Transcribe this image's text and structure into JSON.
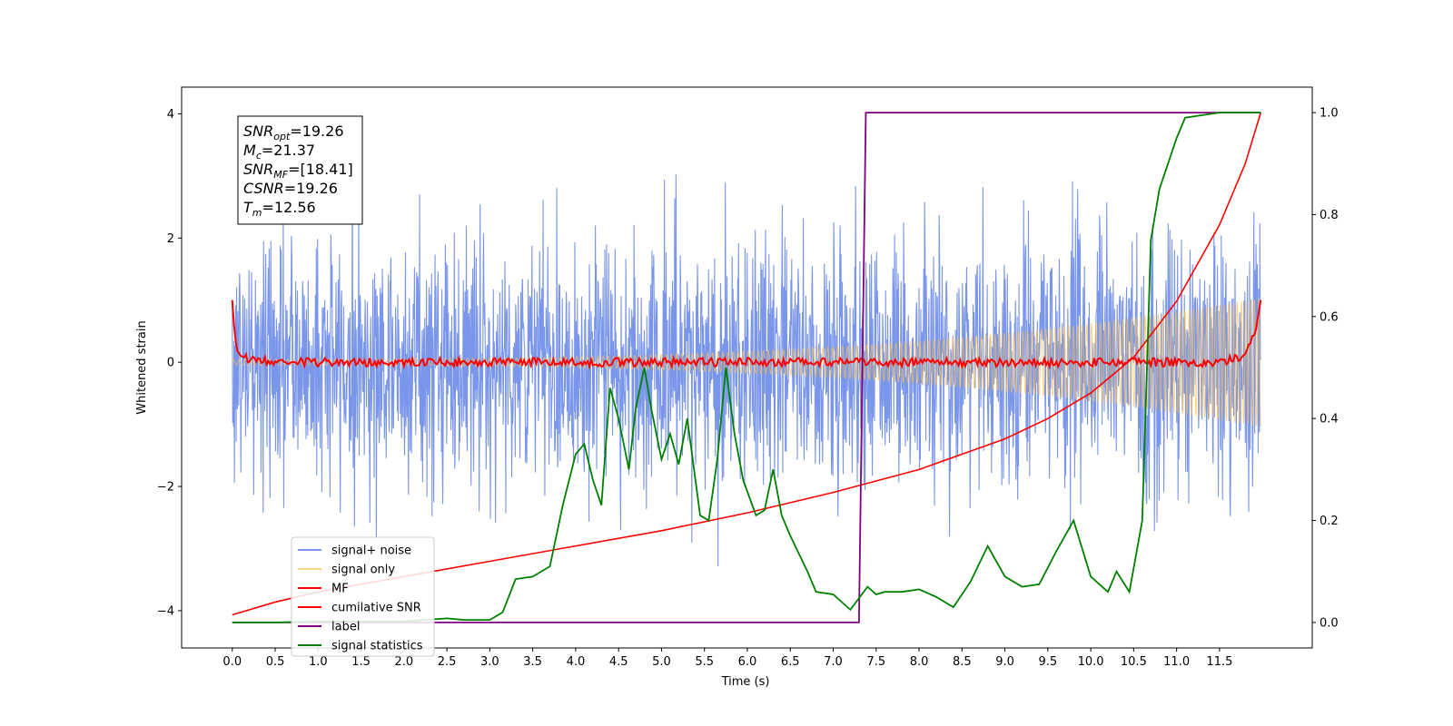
{
  "chart_data": {
    "type": "line",
    "xlabel": "Time (s)",
    "ylabel": "Whitened strain",
    "x_ticks": [
      "0.0",
      "0.5",
      "1.0",
      "1.5",
      "2.0",
      "2.5",
      "3.0",
      "3.5",
      "4.0",
      "4.5",
      "5.0",
      "5.5",
      "6.0",
      "6.5",
      "7.0",
      "7.5",
      "8.0",
      "8.5",
      "9.0",
      "9.5",
      "10.0",
      "10.5",
      "11.0",
      "11.5"
    ],
    "x_tick_values": [
      0.0,
      0.5,
      1.0,
      1.5,
      2.0,
      2.5,
      3.0,
      3.5,
      4.0,
      4.5,
      5.0,
      5.5,
      6.0,
      6.5,
      7.0,
      7.5,
      8.0,
      8.5,
      9.0,
      9.5,
      10.0,
      10.5,
      11.0,
      11.5
    ],
    "y_left_ticks": [
      "4",
      "2",
      "0",
      "−2",
      "−4"
    ],
    "y_left_tick_values": [
      4,
      2,
      0,
      -2,
      -4
    ],
    "y_right_ticks": [
      "1.0",
      "0.8",
      "0.6",
      "0.4",
      "0.2",
      "0.0"
    ],
    "y_right_tick_values": [
      1.0,
      0.8,
      0.6,
      0.4,
      0.2,
      0.0
    ],
    "xlim": [
      -0.59,
      12.58
    ],
    "ylim_left": [
      -4.6,
      4.43
    ],
    "ylim_right": [
      -0.05,
      1.05
    ],
    "grid": false,
    "legend_position": "lower-left",
    "annotation_box": {
      "lines": [
        {
          "main": "SNR",
          "sub": "opt",
          "rest": "=19.26"
        },
        {
          "main": "M",
          "sub": "c",
          "rest": "=21.37"
        },
        {
          "main": "SNR",
          "sub": "MF",
          "rest": "=[18.41]"
        },
        {
          "main": "CSNR",
          "sub": "",
          "rest": "=19.26"
        },
        {
          "main": "T",
          "sub": "m",
          "rest": "=12.56"
        }
      ]
    },
    "series": [
      {
        "name": "signal+ noise",
        "axis": "left",
        "color": "#4169e1",
        "kind": "noise",
        "x_range": [
          0,
          11.98
        ],
        "spread_std": 1.0,
        "extremes": [
          3.3,
          -4.1
        ]
      },
      {
        "name": "signal only",
        "axis": "left",
        "color": "#ffc04c",
        "kind": "chirp",
        "x_range": [
          0,
          11.98
        ],
        "amplitude_start": 0.05,
        "amplitude_end": 1.05
      },
      {
        "name": "MF",
        "axis": "left",
        "color": "#ff0000",
        "kind": "mf",
        "points": [
          [
            0.0,
            1.0
          ],
          [
            0.02,
            0.6
          ],
          [
            0.05,
            0.2
          ],
          [
            0.1,
            0.1
          ],
          [
            0.2,
            0.05
          ],
          [
            0.5,
            0.0
          ],
          [
            2.0,
            0.0
          ],
          [
            6.0,
            0.0
          ],
          [
            10.0,
            0.0
          ],
          [
            11.5,
            0.0
          ],
          [
            11.8,
            0.1
          ],
          [
            11.92,
            0.5
          ],
          [
            11.98,
            1.0
          ]
        ]
      },
      {
        "name": "cumilative SNR",
        "axis": "right",
        "color": "#ff0000",
        "points": [
          [
            0.0,
            0.015
          ],
          [
            0.5,
            0.04
          ],
          [
            1.0,
            0.06
          ],
          [
            2.0,
            0.09
          ],
          [
            3.0,
            0.12
          ],
          [
            4.0,
            0.15
          ],
          [
            5.0,
            0.18
          ],
          [
            6.0,
            0.215
          ],
          [
            7.0,
            0.255
          ],
          [
            8.0,
            0.3
          ],
          [
            9.0,
            0.36
          ],
          [
            9.5,
            0.4
          ],
          [
            10.0,
            0.45
          ],
          [
            10.5,
            0.52
          ],
          [
            11.0,
            0.63
          ],
          [
            11.5,
            0.78
          ],
          [
            11.8,
            0.9
          ],
          [
            11.98,
            1.0
          ]
        ]
      },
      {
        "name": "label",
        "axis": "right",
        "color": "#800080",
        "points": [
          [
            0.0,
            0.0
          ],
          [
            7.3,
            0.0
          ],
          [
            7.38,
            1.0
          ],
          [
            11.98,
            1.0
          ]
        ]
      },
      {
        "name": "signal statistics",
        "axis": "right",
        "color": "#008000",
        "points": [
          [
            0.0,
            0.0
          ],
          [
            0.5,
            0.0
          ],
          [
            1.0,
            0.002
          ],
          [
            2.0,
            0.002
          ],
          [
            2.5,
            0.008
          ],
          [
            2.7,
            0.005
          ],
          [
            3.0,
            0.005
          ],
          [
            3.15,
            0.02
          ],
          [
            3.3,
            0.085
          ],
          [
            3.5,
            0.09
          ],
          [
            3.7,
            0.11
          ],
          [
            3.85,
            0.23
          ],
          [
            4.0,
            0.33
          ],
          [
            4.1,
            0.35
          ],
          [
            4.2,
            0.28
          ],
          [
            4.3,
            0.23
          ],
          [
            4.4,
            0.46
          ],
          [
            4.5,
            0.4
          ],
          [
            4.62,
            0.3
          ],
          [
            4.7,
            0.42
          ],
          [
            4.8,
            0.5
          ],
          [
            4.88,
            0.42
          ],
          [
            5.0,
            0.32
          ],
          [
            5.1,
            0.37
          ],
          [
            5.2,
            0.31
          ],
          [
            5.3,
            0.4
          ],
          [
            5.45,
            0.21
          ],
          [
            5.55,
            0.2
          ],
          [
            5.65,
            0.32
          ],
          [
            5.75,
            0.5
          ],
          [
            5.85,
            0.37
          ],
          [
            5.95,
            0.28
          ],
          [
            6.1,
            0.21
          ],
          [
            6.2,
            0.22
          ],
          [
            6.3,
            0.3
          ],
          [
            6.4,
            0.21
          ],
          [
            6.5,
            0.17
          ],
          [
            6.7,
            0.1
          ],
          [
            6.8,
            0.06
          ],
          [
            7.0,
            0.055
          ],
          [
            7.2,
            0.025
          ],
          [
            7.4,
            0.07
          ],
          [
            7.5,
            0.055
          ],
          [
            7.6,
            0.06
          ],
          [
            7.8,
            0.06
          ],
          [
            8.0,
            0.065
          ],
          [
            8.2,
            0.05
          ],
          [
            8.4,
            0.03
          ],
          [
            8.6,
            0.08
          ],
          [
            8.8,
            0.15
          ],
          [
            9.0,
            0.09
          ],
          [
            9.2,
            0.07
          ],
          [
            9.4,
            0.075
          ],
          [
            9.6,
            0.14
          ],
          [
            9.8,
            0.2
          ],
          [
            10.0,
            0.09
          ],
          [
            10.2,
            0.06
          ],
          [
            10.3,
            0.1
          ],
          [
            10.45,
            0.06
          ],
          [
            10.6,
            0.2
          ],
          [
            10.7,
            0.75
          ],
          [
            10.8,
            0.85
          ],
          [
            11.0,
            0.95
          ],
          [
            11.1,
            0.99
          ],
          [
            11.3,
            0.995
          ],
          [
            11.5,
            1.0
          ],
          [
            11.98,
            1.0
          ]
        ]
      }
    ]
  }
}
